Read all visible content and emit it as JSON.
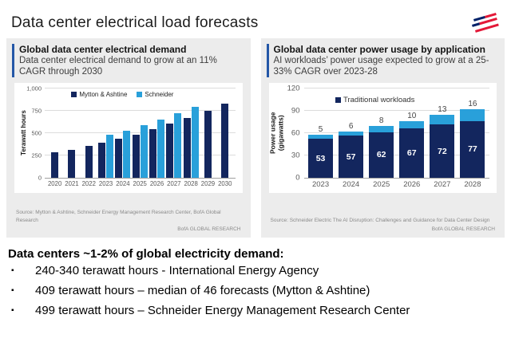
{
  "page": {
    "title": "Data center electrical load forecasts"
  },
  "colors": {
    "navy": "#13265E",
    "light_blue": "#29A0DA",
    "accent_bar": "#2457A7",
    "panel_bg": "#ECECEC",
    "gridline": "#DCDCDC",
    "tick_text": "#595959",
    "logo_blue": "#012169",
    "logo_red": "#E31837"
  },
  "panels": [
    {
      "title": "Global data center electrical demand",
      "subtitle": "Data center electrical demand to grow at an 11% CAGR through 2030",
      "source": "Source: Mytton & Ashtine, Schneider Energy Management Research Center, BofA Global Research",
      "brand": "BofA GLOBAL RESEARCH"
    },
    {
      "title": "Global data center power usage by application",
      "subtitle": "AI workloads’ power usage expected to grow at a 25-33% CAGR over 2023-28",
      "source": "Source: Schneider Electric The AI Disruption: Challenges and Guidance for Data Center Design",
      "brand": "BofA GLOBAL RESEARCH"
    }
  ],
  "chart_data": [
    {
      "type": "bar",
      "title": "Global data center electrical demand",
      "categories": [
        "2020",
        "2021",
        "2022",
        "2023",
        "2024",
        "2025",
        "2026",
        "2027",
        "2028",
        "2029",
        "2030"
      ],
      "series": [
        {
          "name": "Mytton & Ashtine",
          "color_key": "navy",
          "values": [
            290,
            320,
            365,
            395,
            440,
            485,
            545,
            610,
            670,
            750,
            835
          ]
        },
        {
          "name": "Schneider",
          "color_key": "light_blue",
          "values": [
            null,
            null,
            null,
            490,
            535,
            590,
            655,
            730,
            800,
            null,
            null
          ]
        }
      ],
      "legend": [
        {
          "label": "Mytton & Ashtine",
          "color_key": "navy"
        },
        {
          "label": "Schneider",
          "color_key": "light_blue"
        }
      ],
      "xlabel": "",
      "ylabel": "Terawatt hours",
      "ylim": [
        0,
        1000
      ],
      "yticks": [
        0,
        250,
        500,
        750,
        1000
      ],
      "ytick_labels": [
        "0",
        "250",
        "500",
        "750",
        "1,000"
      ],
      "grid": true,
      "legend_position": "top-left-inside"
    },
    {
      "type": "stacked-bar",
      "title": "Global data center power usage by application",
      "categories": [
        "2023",
        "2024",
        "2025",
        "2026",
        "2027",
        "2028"
      ],
      "series": [
        {
          "name": "Traditional workloads",
          "color_key": "navy",
          "values": [
            53,
            57,
            62,
            67,
            72,
            77
          ],
          "value_labels": "inside"
        },
        {
          "name": "AI workloads",
          "color_key": "light_blue",
          "values": [
            5,
            6,
            8,
            10,
            13,
            16
          ],
          "value_labels": "above"
        }
      ],
      "legend": [
        {
          "label": "Traditional workloads",
          "color_key": "navy"
        }
      ],
      "xlabel": "",
      "ylabel": "Power usage\n(gigawatts)",
      "ylim": [
        0,
        120
      ],
      "yticks": [
        0,
        30,
        60,
        90,
        120
      ],
      "ytick_labels": [
        "0",
        "30",
        "60",
        "90",
        "120"
      ],
      "grid": true,
      "legend_position": "top-left-inside"
    }
  ],
  "bottom": {
    "heading": "Data centers ~1-2% of global electricity demand:",
    "bullet_marker": "▪",
    "bullets": [
      "240-340 terawatt hours - International Energy Agency",
      "409 terawatt hours – median of 46 forecasts (Mytton & Ashtine)",
      "499 terawatt hours – Schneider Energy Management Research Center"
    ]
  }
}
